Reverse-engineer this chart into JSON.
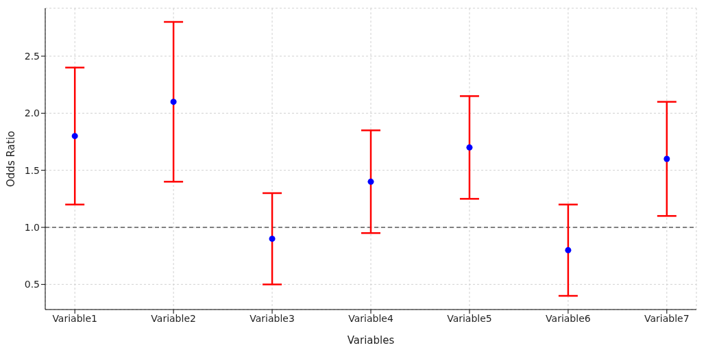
{
  "chart_data": {
    "type": "scatter",
    "xlabel": "Variables",
    "ylabel": "Odds Ratio",
    "categories": [
      "Variable1",
      "Variable2",
      "Variable3",
      "Variable4",
      "Variable5",
      "Variable6",
      "Variable7"
    ],
    "series": [
      {
        "color": "#0000ff",
        "values": [
          1.8,
          2.1,
          0.9,
          1.4,
          1.7,
          0.8,
          1.6
        ],
        "errors": [
          0.6,
          0.7,
          0.4,
          0.45,
          0.45,
          0.4,
          0.5
        ]
      }
    ],
    "ylim": [
      0.28,
      2.92
    ],
    "yticks": [
      0.5,
      {
        "value": 1,
        "label": "1.0"
      },
      1.5,
      {
        "value": 2,
        "label": "2.0"
      },
      2.5
    ],
    "ref_lines": [
      {
        "axis": "y",
        "value": 1.0,
        "color": "#808080",
        "line_style": "dashed"
      }
    ],
    "grid": true,
    "marker": "circle"
  }
}
